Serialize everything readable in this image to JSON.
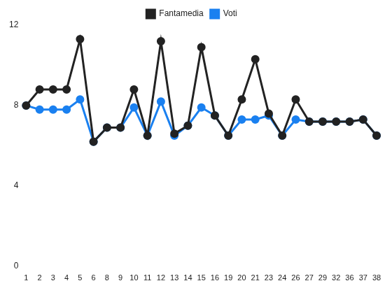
{
  "chart_data": {
    "type": "line",
    "categories": [
      "1",
      "2",
      "3",
      "4",
      "5",
      "6",
      "8",
      "9",
      "10",
      "11",
      "12",
      "13",
      "14",
      "15",
      "16",
      "19",
      "20",
      "21",
      "23",
      "24",
      "26",
      "27",
      "29",
      "32",
      "36",
      "37",
      "38"
    ],
    "series": [
      {
        "name": "Voti",
        "color": "#1a80f0",
        "marker": "circle",
        "values": [
          8,
          7.8,
          7.8,
          7.8,
          8.3,
          6.2,
          6.9,
          6.9,
          7.9,
          6.5,
          8.2,
          6.5,
          7,
          7.9,
          7.5,
          6.5,
          7.3,
          7.3,
          7.5,
          6.5,
          7.3,
          7.2,
          7.2,
          7.2,
          7.2,
          7.3,
          6.5
        ]
      },
      {
        "name": "Fantamedia",
        "color": "#222222",
        "marker": "circle",
        "values": [
          8,
          8.8,
          8.8,
          8.8,
          11.3,
          6.2,
          6.9,
          6.9,
          8.8,
          6.5,
          11.2,
          6.6,
          7,
          10.9,
          7.5,
          6.5,
          8.3,
          10.3,
          7.6,
          6.5,
          8.3,
          7.2,
          7.2,
          7.2,
          7.2,
          7.3,
          6.5
        ]
      }
    ],
    "ylim": [
      0,
      12
    ],
    "yticks": [
      0,
      4,
      8,
      12
    ],
    "grid": false,
    "legend": "top"
  }
}
